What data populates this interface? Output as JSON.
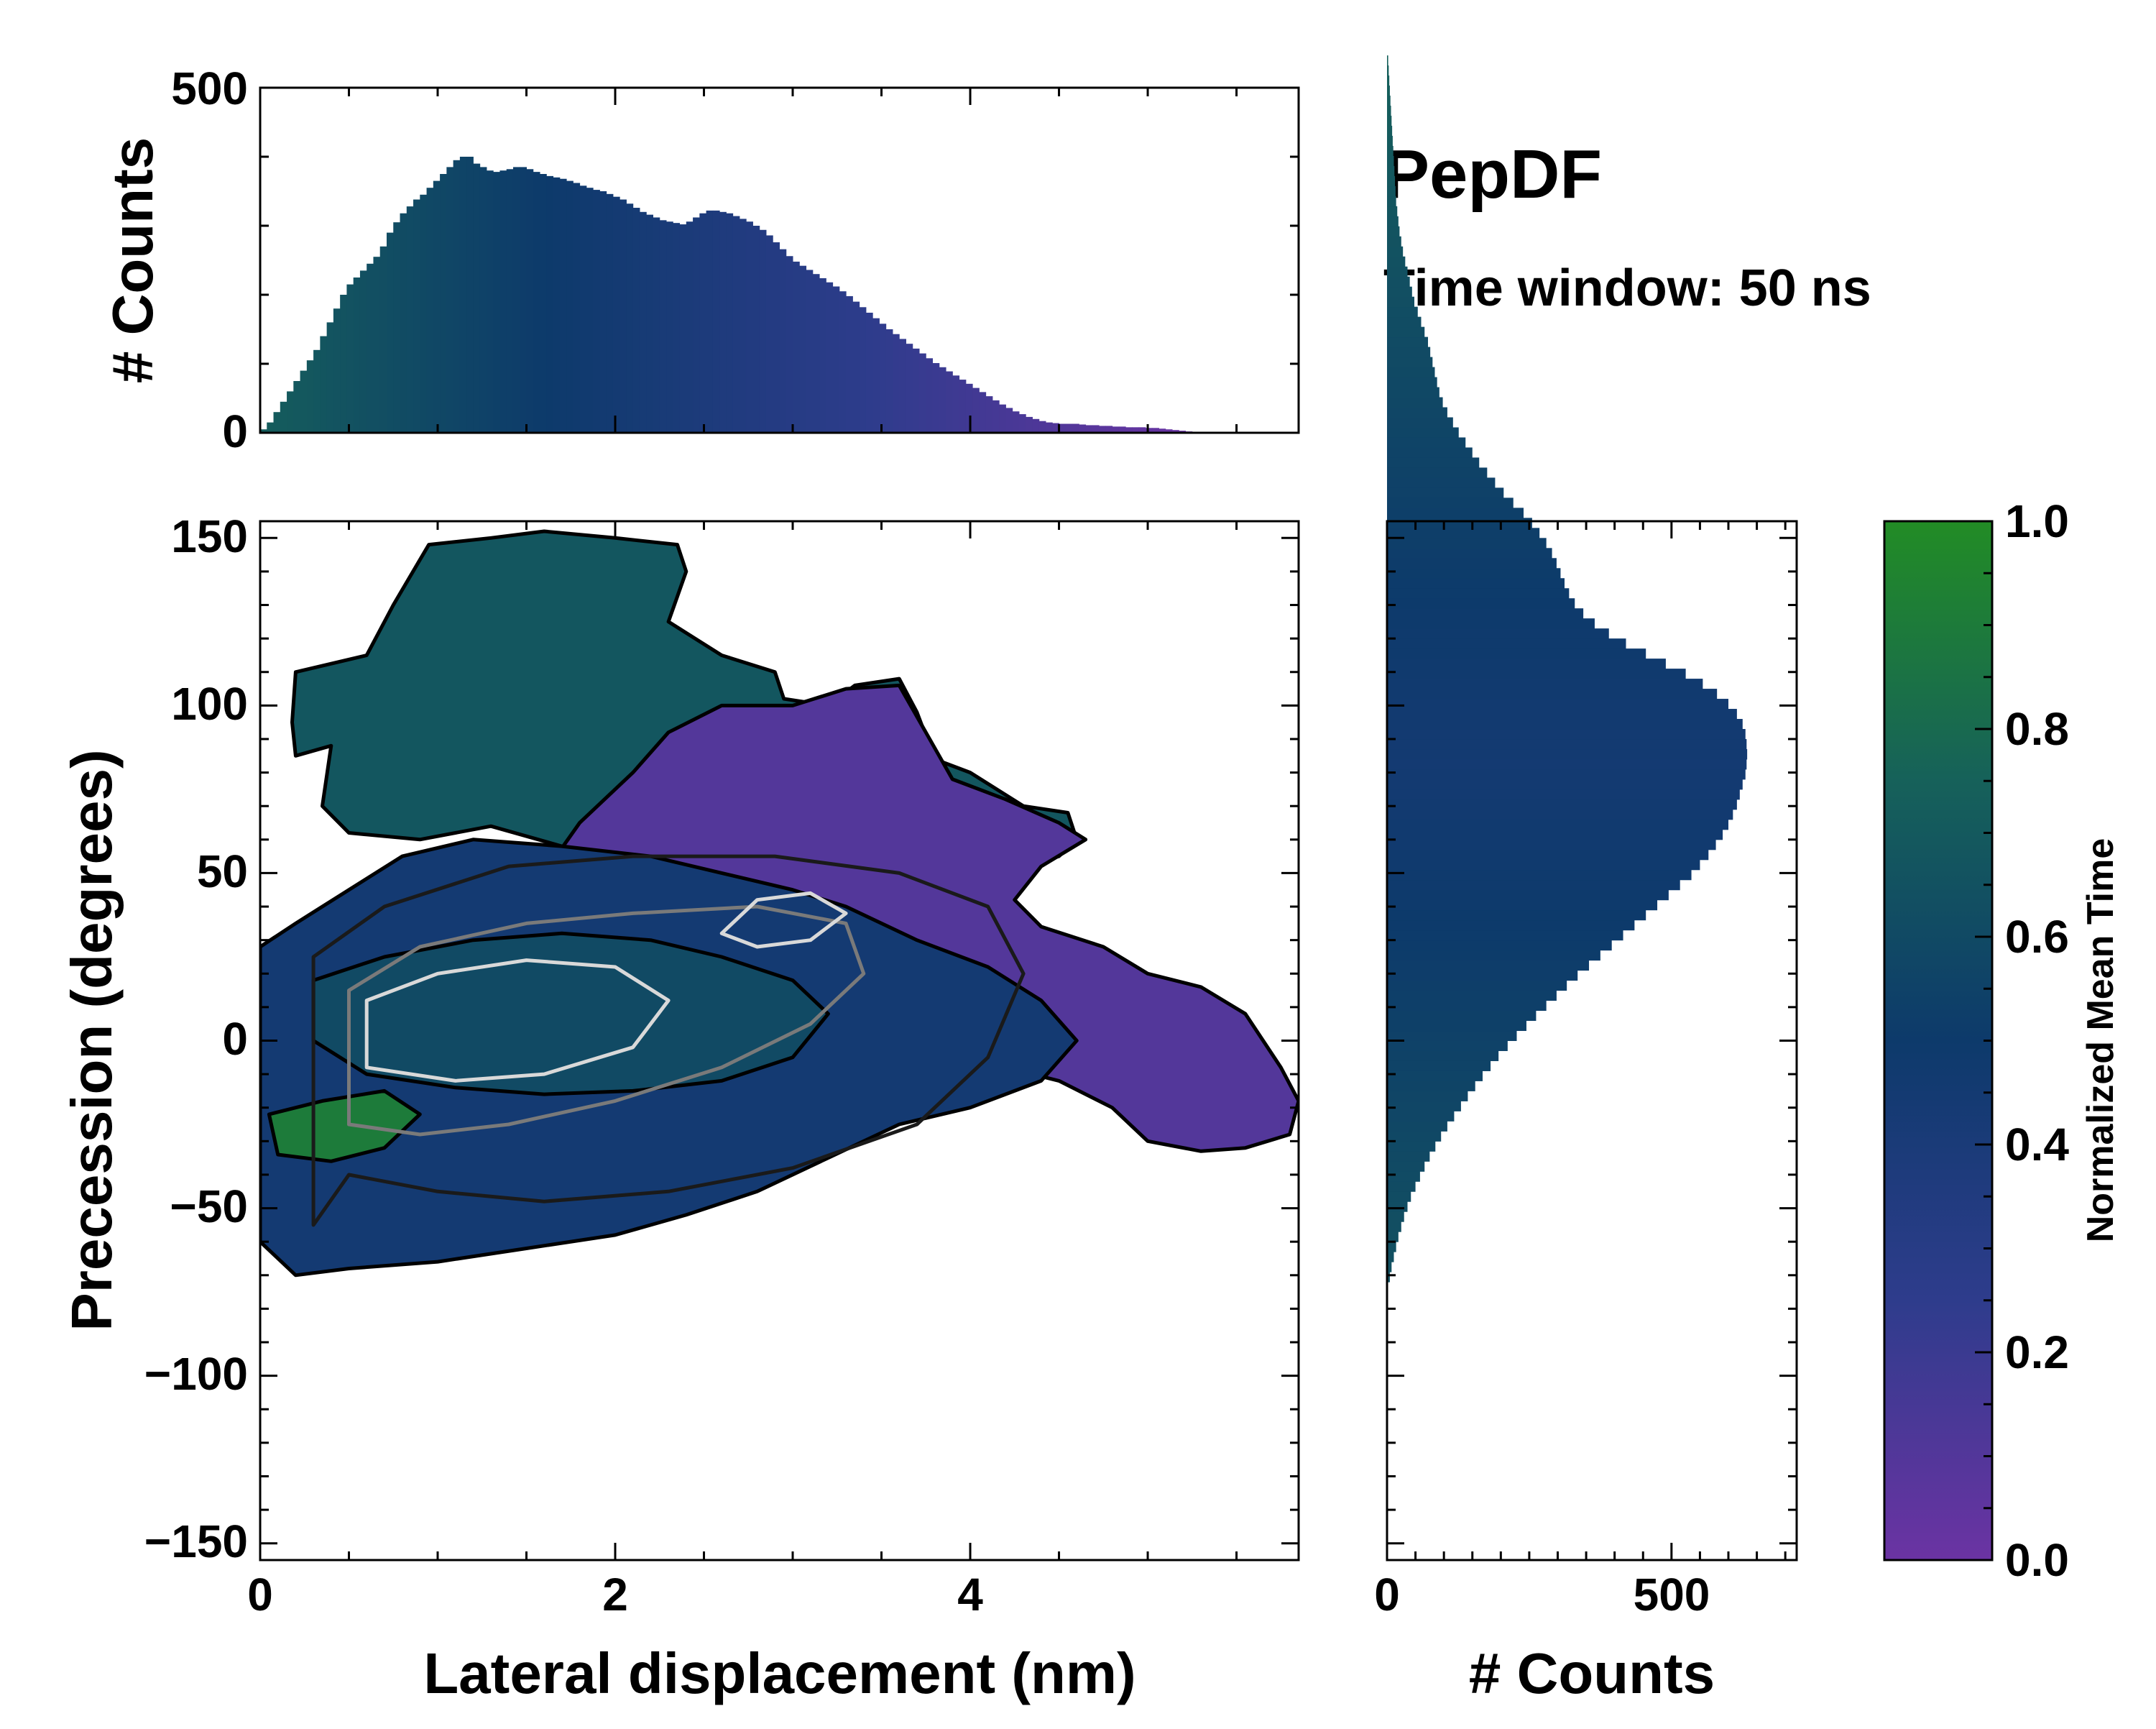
{
  "figure": {
    "title": "PepDF",
    "subtitle": "Time window: 50 ns"
  },
  "colors": {
    "cmap": [
      "#6b33a3",
      "#2e3c8c",
      "#0d3a6b",
      "#16615a",
      "#228c25"
    ],
    "contour_light": "#d9d9d9",
    "contour_mid": "#7a7a7a",
    "contour_dark": "#1a1a1a",
    "outline": "#000000"
  },
  "chart_data": [
    {
      "id": "top_hist",
      "type": "bar",
      "title": "",
      "xlabel": "",
      "ylabel": "# Counts",
      "xlim": [
        0,
        5.85
      ],
      "ylim": [
        0,
        500
      ],
      "yticks": [
        "0",
        "500"
      ],
      "bin_width": 0.0375,
      "x_start": 0.0,
      "values": [
        5,
        15,
        30,
        45,
        60,
        75,
        90,
        105,
        120,
        140,
        160,
        180,
        200,
        215,
        225,
        235,
        245,
        255,
        270,
        290,
        305,
        318,
        328,
        338,
        345,
        355,
        365,
        375,
        385,
        395,
        400,
        400,
        390,
        385,
        380,
        378,
        380,
        382,
        385,
        385,
        382,
        378,
        375,
        372,
        370,
        368,
        365,
        362,
        358,
        355,
        352,
        350,
        346,
        342,
        338,
        332,
        326,
        320,
        316,
        312,
        308,
        306,
        304,
        302,
        306,
        312,
        318,
        322,
        322,
        320,
        318,
        314,
        310,
        306,
        300,
        294,
        286,
        276,
        266,
        256,
        248,
        242,
        236,
        230,
        224,
        218,
        212,
        205,
        198,
        190,
        182,
        174,
        166,
        158,
        150,
        143,
        136,
        129,
        122,
        115,
        108,
        101,
        95,
        89,
        83,
        77,
        71,
        65,
        59,
        53,
        47,
        41,
        36,
        31,
        27,
        23,
        20,
        17,
        15,
        14,
        13,
        13,
        13,
        12,
        11,
        11,
        10,
        10,
        9,
        9,
        8,
        8,
        8,
        7,
        7,
        6,
        5,
        4,
        3,
        2
      ]
    },
    {
      "id": "main_2d",
      "type": "heatmap",
      "title": "",
      "xlabel": "Lateral displacement (nm)",
      "ylabel": "Precession (degrees)",
      "xlim": [
        0,
        5.85
      ],
      "ylim": [
        -155,
        155
      ],
      "xticks": [
        "0",
        "2",
        "4"
      ],
      "yticks": [
        "−150",
        "−100",
        "−50",
        "0",
        "50",
        "100",
        "150"
      ],
      "regions": [
        {
          "name": "upper lobe",
          "value": 0.68,
          "polygon": [
            [
              0.18,
              95
            ],
            [
              0.2,
              110
            ],
            [
              0.6,
              115
            ],
            [
              0.75,
              130
            ],
            [
              0.95,
              148
            ],
            [
              1.3,
              150
            ],
            [
              1.6,
              152
            ],
            [
              2.0,
              150
            ],
            [
              2.35,
              148
            ],
            [
              2.4,
              140
            ],
            [
              2.3,
              125
            ],
            [
              2.6,
              115
            ],
            [
              2.9,
              110
            ],
            [
              2.95,
              102
            ],
            [
              3.2,
              100
            ],
            [
              3.35,
              106
            ],
            [
              3.6,
              108
            ],
            [
              3.7,
              98
            ],
            [
              3.8,
              84
            ],
            [
              4.0,
              80
            ],
            [
              4.3,
              70
            ],
            [
              4.55,
              68
            ],
            [
              4.6,
              60
            ],
            [
              4.5,
              55
            ],
            [
              4.3,
              52
            ],
            [
              4.05,
              45
            ],
            [
              3.7,
              40
            ],
            [
              3.3,
              38
            ],
            [
              3.0,
              50
            ],
            [
              2.6,
              60
            ],
            [
              2.2,
              60
            ],
            [
              1.7,
              58
            ],
            [
              1.3,
              64
            ],
            [
              0.9,
              60
            ],
            [
              0.5,
              62
            ],
            [
              0.35,
              70
            ],
            [
              0.4,
              88
            ],
            [
              0.2,
              85
            ]
          ]
        },
        {
          "name": "right lobe",
          "value": 0.1,
          "polygon": [
            [
              2.3,
              92
            ],
            [
              2.6,
              100
            ],
            [
              3.0,
              100
            ],
            [
              3.3,
              105
            ],
            [
              3.6,
              106
            ],
            [
              3.75,
              92
            ],
            [
              3.9,
              78
            ],
            [
              4.2,
              72
            ],
            [
              4.5,
              65
            ],
            [
              4.65,
              60
            ],
            [
              4.4,
              52
            ],
            [
              4.25,
              42
            ],
            [
              4.4,
              34
            ],
            [
              4.75,
              28
            ],
            [
              5.0,
              20
            ],
            [
              5.3,
              16
            ],
            [
              5.55,
              8
            ],
            [
              5.75,
              -8
            ],
            [
              5.85,
              -18
            ],
            [
              5.8,
              -28
            ],
            [
              5.55,
              -32
            ],
            [
              5.3,
              -33
            ],
            [
              5.0,
              -30
            ],
            [
              4.8,
              -20
            ],
            [
              4.5,
              -12
            ],
            [
              4.2,
              -8
            ],
            [
              3.9,
              -12
            ],
            [
              3.6,
              -20
            ],
            [
              3.3,
              -15
            ],
            [
              3.0,
              -8
            ],
            [
              2.7,
              5
            ],
            [
              2.4,
              15
            ],
            [
              2.1,
              25
            ],
            [
              1.8,
              35
            ],
            [
              1.6,
              50
            ],
            [
              1.8,
              65
            ],
            [
              2.1,
              80
            ]
          ]
        },
        {
          "name": "central band",
          "value": 0.45,
          "polygon": [
            [
              0.0,
              28
            ],
            [
              0.2,
              35
            ],
            [
              0.5,
              45
            ],
            [
              0.8,
              55
            ],
            [
              1.2,
              60
            ],
            [
              1.7,
              58
            ],
            [
              2.2,
              55
            ],
            [
              2.6,
              50
            ],
            [
              3.0,
              45
            ],
            [
              3.3,
              40
            ],
            [
              3.7,
              30
            ],
            [
              4.1,
              22
            ],
            [
              4.4,
              12
            ],
            [
              4.6,
              0
            ],
            [
              4.4,
              -12
            ],
            [
              4.0,
              -20
            ],
            [
              3.6,
              -25
            ],
            [
              3.2,
              -35
            ],
            [
              2.8,
              -45
            ],
            [
              2.4,
              -52
            ],
            [
              2.0,
              -58
            ],
            [
              1.5,
              -62
            ],
            [
              1.0,
              -66
            ],
            [
              0.5,
              -68
            ],
            [
              0.2,
              -70
            ],
            [
              0.0,
              -60
            ]
          ]
        },
        {
          "name": "core",
          "value": 0.6,
          "polygon": [
            [
              0.3,
              18
            ],
            [
              0.7,
              25
            ],
            [
              1.2,
              30
            ],
            [
              1.7,
              32
            ],
            [
              2.2,
              30
            ],
            [
              2.6,
              25
            ],
            [
              3.0,
              18
            ],
            [
              3.2,
              8
            ],
            [
              3.0,
              -5
            ],
            [
              2.6,
              -12
            ],
            [
              2.1,
              -15
            ],
            [
              1.6,
              -16
            ],
            [
              1.1,
              -14
            ],
            [
              0.6,
              -10
            ],
            [
              0.3,
              0
            ]
          ]
        },
        {
          "name": "green patch",
          "value": 0.9,
          "polygon": [
            [
              0.05,
              -22
            ],
            [
              0.35,
              -18
            ],
            [
              0.7,
              -15
            ],
            [
              0.9,
              -22
            ],
            [
              0.7,
              -32
            ],
            [
              0.4,
              -36
            ],
            [
              0.1,
              -34
            ]
          ]
        }
      ],
      "contours": [
        {
          "level": "outer",
          "color_key": "contour_dark",
          "points": [
            [
              0.3,
              -55
            ],
            [
              0.3,
              25
            ],
            [
              0.7,
              40
            ],
            [
              1.4,
              52
            ],
            [
              2.1,
              55
            ],
            [
              2.9,
              55
            ],
            [
              3.6,
              50
            ],
            [
              4.1,
              40
            ],
            [
              4.3,
              20
            ],
            [
              4.1,
              -5
            ],
            [
              3.7,
              -25
            ],
            [
              3.0,
              -38
            ],
            [
              2.3,
              -45
            ],
            [
              1.6,
              -48
            ],
            [
              1.0,
              -45
            ],
            [
              0.5,
              -40
            ]
          ]
        },
        {
          "level": "mid",
          "color_key": "contour_mid",
          "points": [
            [
              0.5,
              -25
            ],
            [
              0.5,
              15
            ],
            [
              0.9,
              28
            ],
            [
              1.5,
              35
            ],
            [
              2.1,
              38
            ],
            [
              2.8,
              40
            ],
            [
              3.3,
              35
            ],
            [
              3.4,
              20
            ],
            [
              3.1,
              5
            ],
            [
              2.6,
              -8
            ],
            [
              2.0,
              -18
            ],
            [
              1.4,
              -25
            ],
            [
              0.9,
              -28
            ]
          ]
        },
        {
          "level": "inner",
          "color_key": "contour_light",
          "points": [
            [
              0.6,
              -8
            ],
            [
              0.6,
              12
            ],
            [
              1.0,
              20
            ],
            [
              1.5,
              24
            ],
            [
              2.0,
              22
            ],
            [
              2.3,
              12
            ],
            [
              2.1,
              -2
            ],
            [
              1.6,
              -10
            ],
            [
              1.1,
              -12
            ]
          ]
        },
        {
          "level": "inner2",
          "color_key": "contour_light",
          "points": [
            [
              2.6,
              32
            ],
            [
              2.8,
              42
            ],
            [
              3.1,
              44
            ],
            [
              3.3,
              38
            ],
            [
              3.1,
              30
            ],
            [
              2.8,
              28
            ]
          ]
        }
      ]
    },
    {
      "id": "right_hist",
      "type": "bar",
      "orientation": "horizontal",
      "title": "",
      "xlabel": "# Counts",
      "ylabel": "",
      "xlim": [
        0,
        720
      ],
      "ylim": [
        -155,
        155
      ],
      "xticks": [
        "0",
        "500"
      ],
      "bin_width": 3.0,
      "y_start": -72,
      "values": [
        5,
        8,
        12,
        16,
        20,
        25,
        30,
        36,
        42,
        50,
        58,
        66,
        75,
        85,
        95,
        106,
        118,
        130,
        142,
        155,
        168,
        182,
        196,
        212,
        228,
        245,
        262,
        280,
        298,
        316,
        335,
        355,
        375,
        395,
        415,
        435,
        455,
        475,
        495,
        515,
        535,
        550,
        565,
        578,
        590,
        600,
        608,
        615,
        620,
        625,
        630,
        632,
        633,
        632,
        630,
        625,
        615,
        600,
        580,
        555,
        525,
        490,
        455,
        420,
        390,
        365,
        345,
        330,
        320,
        312,
        305,
        298,
        290,
        280,
        268,
        255,
        240,
        222,
        205,
        190,
        176,
        162,
        150,
        138,
        126,
        116,
        106,
        98,
        92,
        88,
        84,
        80,
        76,
        72,
        66,
        60,
        54,
        48,
        44,
        40,
        36,
        32,
        28,
        25,
        22,
        20,
        18,
        16,
        15,
        14,
        13,
        12,
        11,
        10,
        9,
        8,
        7,
        6,
        5,
        4,
        3,
        2
      ]
    },
    {
      "id": "colorbar",
      "type": "heatmap",
      "title": "",
      "label": "Normalized Mean Time",
      "range": [
        0.0,
        1.0
      ],
      "ticks": [
        "0.0",
        "0.2",
        "0.4",
        "0.6",
        "0.8",
        "1.0"
      ]
    }
  ]
}
